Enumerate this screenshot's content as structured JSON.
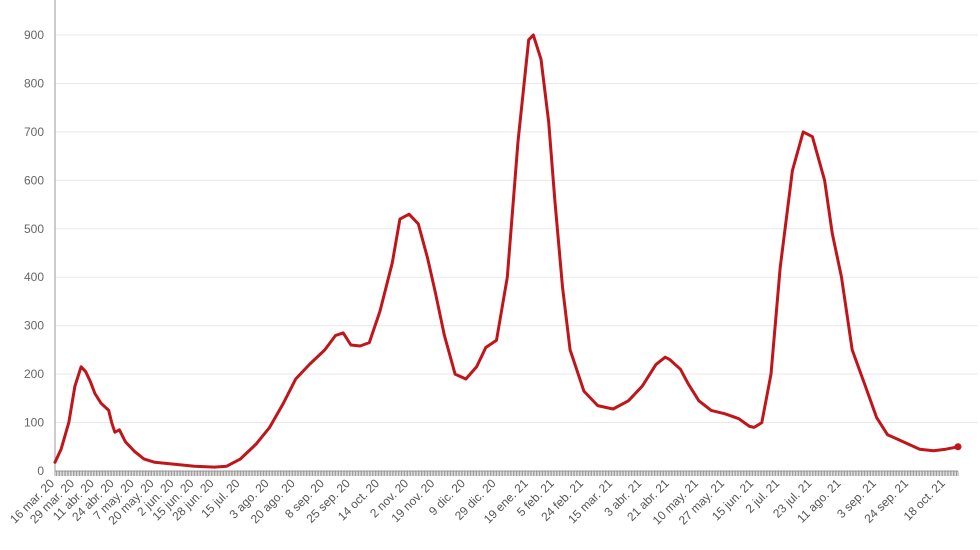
{
  "chart_data": {
    "type": "line",
    "title": "",
    "xlabel": "",
    "ylabel": "",
    "ylim": [
      0,
      900
    ],
    "yticks": [
      0,
      100,
      200,
      300,
      400,
      500,
      600,
      700,
      800,
      900
    ],
    "grid": true,
    "colors": {
      "line": "#c0151b",
      "grid": "#e9e9e9",
      "axis": "#999999",
      "tickmark": "#888888"
    },
    "x_tick_labels": [
      "16 mar. 20",
      "29 mar. 20",
      "11 abr. 20",
      "24 abr. 20",
      "7 may. 20",
      "20 may. 20",
      "2 jun. 20",
      "15 jun. 20",
      "28 jun. 20",
      "15 jul. 20",
      "3 ago. 20",
      "20 ago. 20",
      "8 sep. 20",
      "25 sep. 20",
      "14 oct. 20",
      "2 nov. 20",
      "19 nov. 20",
      "9 dic. 20",
      "29 dic. 20",
      "19 ene. 21",
      "5 feb. 21",
      "24 feb. 21",
      "15 mar. 21",
      "3 abr. 21",
      "21 abr. 21",
      "10 may. 21",
      "27 may. 21",
      "15 jun. 21",
      "2 jul. 21",
      "23 jul. 21",
      "11 ago. 21",
      "3 sep. 21",
      "24 sep. 21",
      "18 oct. 21"
    ],
    "series": [
      {
        "name": "",
        "points": [
          [
            "16 mar. 20",
            18
          ],
          [
            "20 mar. 20",
            45
          ],
          [
            "25 mar. 20",
            100
          ],
          [
            "29 mar. 20",
            175
          ],
          [
            "2 abr. 20",
            215
          ],
          [
            "5 abr. 20",
            205
          ],
          [
            "8 abr. 20",
            185
          ],
          [
            "11 abr. 20",
            160
          ],
          [
            "15 abr. 20",
            140
          ],
          [
            "20 abr. 20",
            125
          ],
          [
            "22 abr. 20",
            100
          ],
          [
            "24 abr. 20",
            80
          ],
          [
            "27 abr. 20",
            85
          ],
          [
            "1 may. 20",
            60
          ],
          [
            "7 may. 20",
            40
          ],
          [
            "13 may. 20",
            25
          ],
          [
            "20 may. 20",
            18
          ],
          [
            "2 jun. 20",
            14
          ],
          [
            "15 jun. 20",
            10
          ],
          [
            "28 jun. 20",
            8
          ],
          [
            "6 jul. 20",
            10
          ],
          [
            "15 jul. 20",
            25
          ],
          [
            "25 jul. 20",
            55
          ],
          [
            "3 ago. 20",
            90
          ],
          [
            "12 ago. 20",
            140
          ],
          [
            "20 ago. 20",
            190
          ],
          [
            "29 ago. 20",
            220
          ],
          [
            "8 sep. 20",
            250
          ],
          [
            "15 sep. 20",
            280
          ],
          [
            "20 sep. 20",
            285
          ],
          [
            "25 sep. 20",
            260
          ],
          [
            "1 oct. 20",
            258
          ],
          [
            "7 oct. 20",
            265
          ],
          [
            "14 oct. 20",
            330
          ],
          [
            "22 oct. 20",
            430
          ],
          [
            "27 oct. 20",
            520
          ],
          [
            "2 nov. 20",
            530
          ],
          [
            "8 nov. 20",
            510
          ],
          [
            "14 nov. 20",
            440
          ],
          [
            "19 nov. 20",
            370
          ],
          [
            "25 nov. 20",
            280
          ],
          [
            "2 dic. 20",
            200
          ],
          [
            "9 dic. 20",
            190
          ],
          [
            "16 dic. 20",
            215
          ],
          [
            "22 dic. 20",
            255
          ],
          [
            "29 dic. 20",
            270
          ],
          [
            "5 ene. 21",
            400
          ],
          [
            "12 ene. 21",
            680
          ],
          [
            "19 ene. 21",
            890
          ],
          [
            "22 ene. 21",
            900
          ],
          [
            "27 ene. 21",
            850
          ],
          [
            "1 feb. 21",
            720
          ],
          [
            "5 feb. 21",
            560
          ],
          [
            "10 feb. 21",
            380
          ],
          [
            "15 feb. 21",
            250
          ],
          [
            "24 feb. 21",
            165
          ],
          [
            "5 mar. 21",
            135
          ],
          [
            "15 mar. 21",
            128
          ],
          [
            "25 mar. 21",
            145
          ],
          [
            "3 abr. 21",
            175
          ],
          [
            "12 abr. 21",
            220
          ],
          [
            "18 abr. 21",
            235
          ],
          [
            "21 abr. 21",
            230
          ],
          [
            "28 abr. 21",
            210
          ],
          [
            "3 may. 21",
            180
          ],
          [
            "10 may. 21",
            145
          ],
          [
            "18 may. 21",
            125
          ],
          [
            "27 may. 21",
            118
          ],
          [
            "5 jun. 21",
            108
          ],
          [
            "12 jun. 21",
            92
          ],
          [
            "15 jun. 21",
            90
          ],
          [
            "20 jun. 21",
            100
          ],
          [
            "26 jun. 21",
            200
          ],
          [
            "2 jul. 21",
            420
          ],
          [
            "10 jul. 21",
            620
          ],
          [
            "17 jul. 21",
            700
          ],
          [
            "23 jul. 21",
            690
          ],
          [
            "31 jul. 21",
            600
          ],
          [
            "5 ago. 21",
            490
          ],
          [
            "11 ago. 21",
            400
          ],
          [
            "18 ago. 21",
            250
          ],
          [
            "26 ago. 21",
            180
          ],
          [
            "3 sep. 21",
            110
          ],
          [
            "10 sep. 21",
            75
          ],
          [
            "17 sep. 21",
            65
          ],
          [
            "24 sep. 21",
            55
          ],
          [
            "1 oct. 21",
            45
          ],
          [
            "10 oct. 21",
            42
          ],
          [
            "18 oct. 21",
            45
          ],
          [
            "26 oct. 21",
            50
          ]
        ]
      }
    ]
  }
}
